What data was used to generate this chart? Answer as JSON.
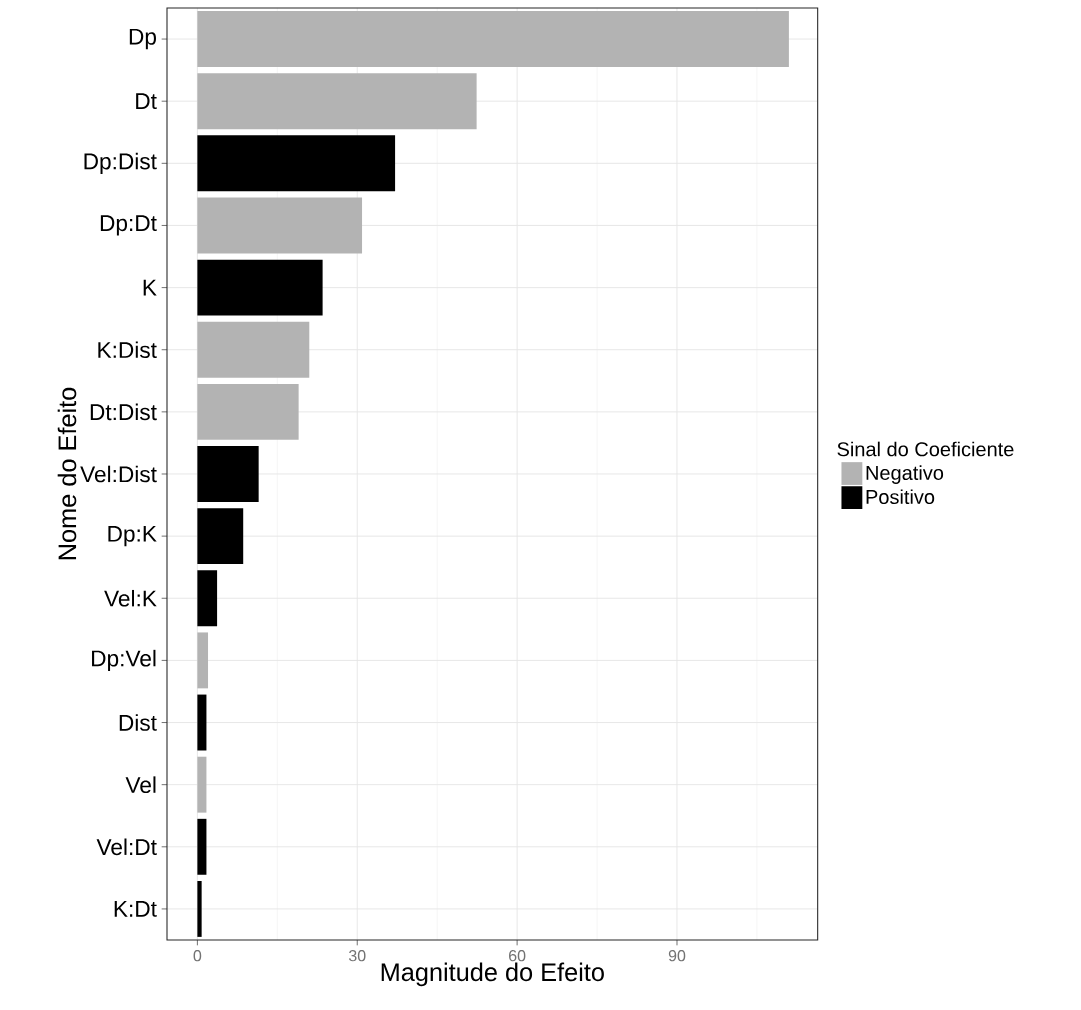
{
  "chart_data": {
    "type": "bar",
    "orientation": "horizontal",
    "xlabel": "Magnitude do Efeito",
    "ylabel": "Nome do Efeito",
    "legend_title": "Sinal do Coeficiente",
    "categories": [
      "Dp",
      "Dt",
      "Dp:Dist",
      "Dp:Dt",
      "K",
      "K:Dist",
      "Dt:Dist",
      "Vel:Dist",
      "Dp:K",
      "Vel:K",
      "Dp:Vel",
      "Dist",
      "Vel",
      "Vel:Dt",
      "K:Dt"
    ],
    "series": [
      {
        "name": "Negativo",
        "color": "#b3b3b3",
        "values": [
          111.0,
          52.4,
          null,
          30.9,
          null,
          21.0,
          19.0,
          null,
          null,
          null,
          2.0,
          null,
          1.7,
          null,
          null
        ]
      },
      {
        "name": "Positivo",
        "color": "#000000",
        "values": [
          null,
          null,
          37.1,
          null,
          23.5,
          null,
          null,
          11.5,
          8.6,
          3.7,
          null,
          1.7,
          null,
          1.7,
          0.8
        ]
      }
    ],
    "xlim": [
      -5.7,
      116.4
    ],
    "xticks": [
      0,
      30,
      60,
      90
    ],
    "grid": true,
    "legend": "right"
  }
}
